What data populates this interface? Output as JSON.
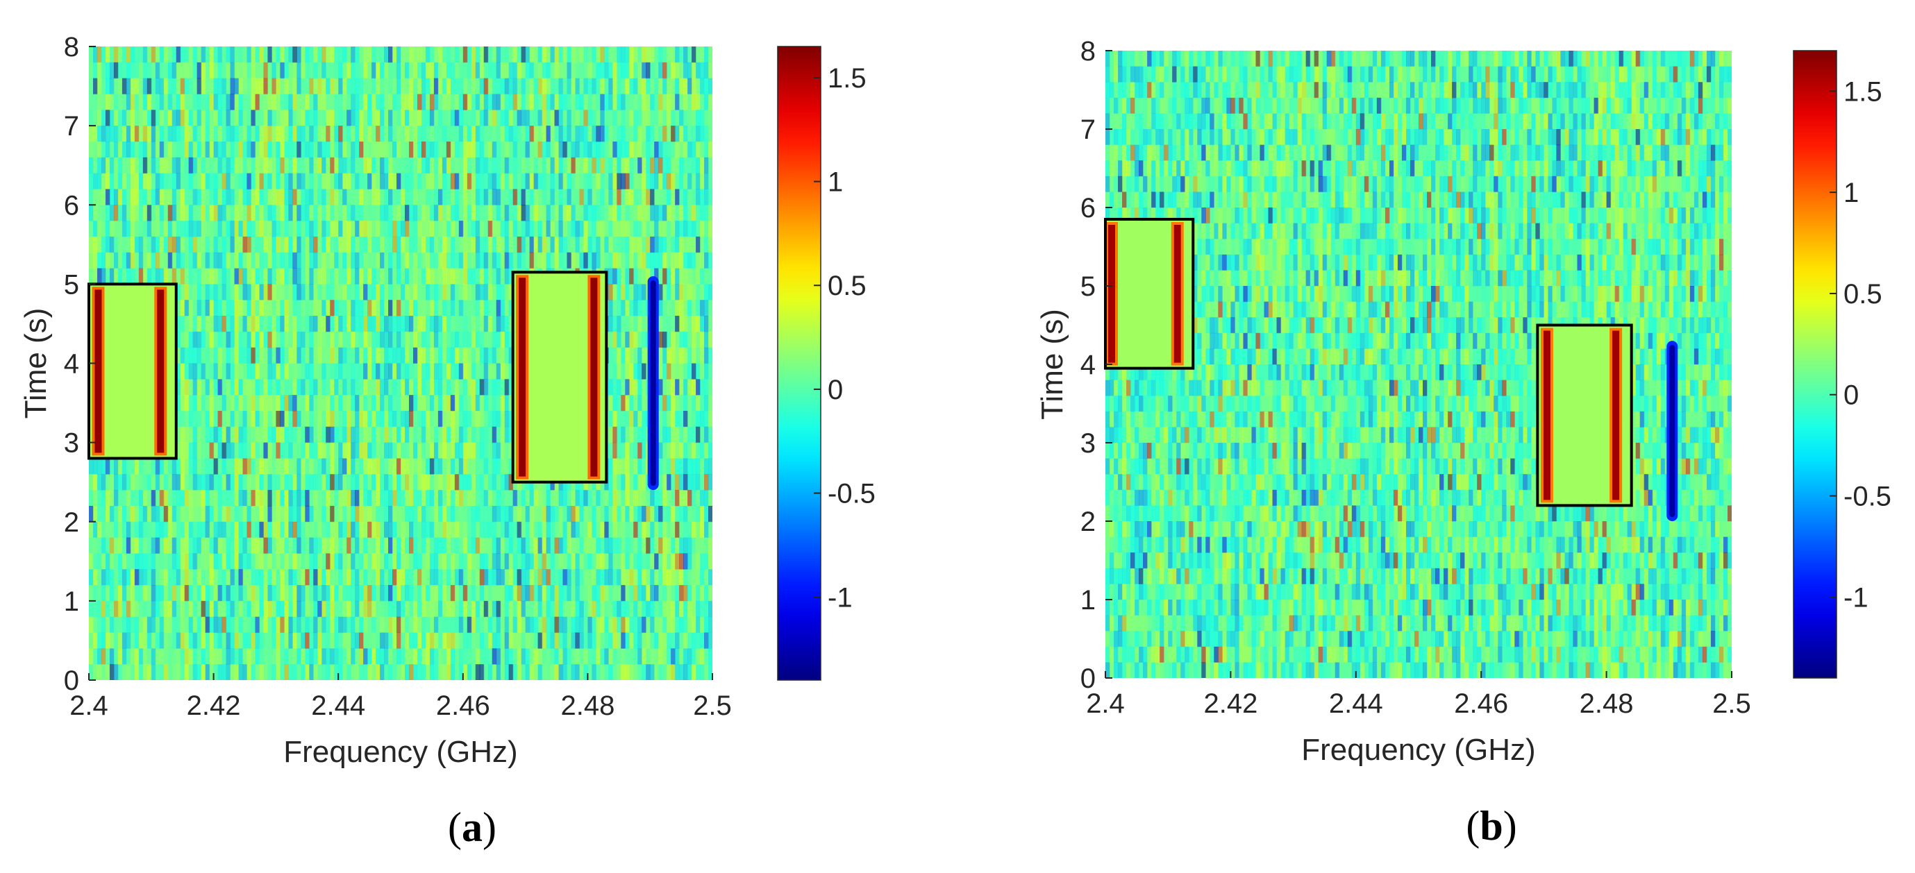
{
  "chart_data": [
    {
      "type": "heatmap",
      "panel_label": "a",
      "title": "",
      "xlabel": "Frequency (GHz)",
      "ylabel": "Time (s)",
      "xlim": [
        2.4,
        2.5
      ],
      "ylim": [
        0,
        8
      ],
      "xticks": [
        2.4,
        2.42,
        2.44,
        2.46,
        2.48,
        2.5
      ],
      "xtick_labels": [
        "2.4",
        "2.42",
        "2.44",
        "2.46",
        "2.48",
        "2.5"
      ],
      "yticks": [
        0,
        1,
        2,
        3,
        4,
        5,
        6,
        7,
        8
      ],
      "ytick_labels": [
        "0",
        "1",
        "2",
        "3",
        "4",
        "5",
        "6",
        "7",
        "8"
      ],
      "colorbar": {
        "range": [
          -1.4,
          1.65
        ],
        "ticks": [
          -1,
          -0.5,
          0,
          0.5,
          1,
          1.5
        ],
        "tick_labels": [
          "-1",
          "-0.5",
          "0",
          "0.5",
          "1",
          "1.5"
        ],
        "colormap": "jet"
      },
      "boxes": [
        {
          "x0": 2.4,
          "x1": 2.414,
          "y0": 2.8,
          "y1": 5.0,
          "edge_lines": [
            2.4015,
            2.4115
          ]
        },
        {
          "x0": 2.468,
          "x1": 2.483,
          "y0": 2.5,
          "y1": 5.15,
          "edge_lines": [
            2.4695,
            2.481
          ]
        }
      ],
      "strong_negative_band": {
        "x": 2.4905,
        "y0": 2.4,
        "y1": 5.1
      },
      "seed": 11
    },
    {
      "type": "heatmap",
      "panel_label": "b",
      "title": "",
      "xlabel": "Frequency (GHz)",
      "ylabel": "Time (s)",
      "xlim": [
        2.4,
        2.5
      ],
      "ylim": [
        0,
        8
      ],
      "xticks": [
        2.4,
        2.42,
        2.44,
        2.46,
        2.48,
        2.5
      ],
      "xtick_labels": [
        "2.4",
        "2.42",
        "2.44",
        "2.46",
        "2.48",
        "2.5"
      ],
      "yticks": [
        0,
        1,
        2,
        3,
        4,
        5,
        6,
        7,
        8
      ],
      "ytick_labels": [
        "0",
        "1",
        "2",
        "3",
        "4",
        "5",
        "6",
        "7",
        "8"
      ],
      "colorbar": {
        "range": [
          -1.4,
          1.7
        ],
        "ticks": [
          -1,
          -0.5,
          0,
          0.5,
          1,
          1.5
        ],
        "tick_labels": [
          "-1",
          "-0.5",
          "0",
          "0.5",
          "1",
          "1.5"
        ],
        "colormap": "jet"
      },
      "boxes": [
        {
          "x0": 2.4,
          "x1": 2.414,
          "y0": 3.95,
          "y1": 5.85,
          "edge_lines": [
            2.401,
            2.4115
          ]
        },
        {
          "x0": 2.469,
          "x1": 2.484,
          "y0": 2.2,
          "y1": 4.5,
          "edge_lines": [
            2.4705,
            2.4815
          ]
        }
      ],
      "strong_negative_band": {
        "x": 2.4905,
        "y0": 2.0,
        "y1": 4.3
      },
      "seed": 29
    }
  ]
}
